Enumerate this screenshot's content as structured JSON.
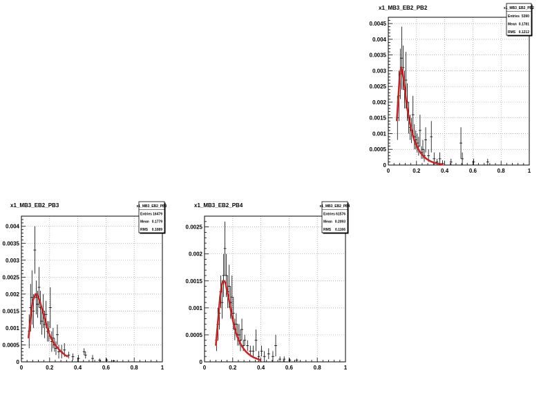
{
  "chart_data": [
    {
      "type": "histogram",
      "title": "x1_MB3_EB2_PB2",
      "xlim": [
        0,
        1
      ],
      "ylim": [
        0,
        0.0047
      ],
      "x_ticks": [
        {
          "v": 0,
          "label": "0"
        },
        {
          "v": 0.2,
          "label": "0.2"
        },
        {
          "v": 0.4,
          "label": "0.4"
        },
        {
          "v": 0.6,
          "label": "0.6"
        },
        {
          "v": 0.8,
          "label": "0.8"
        },
        {
          "v": 1,
          "label": "1"
        }
      ],
      "y_ticks": [
        {
          "v": 0,
          "label": "0"
        },
        {
          "v": 0.0005,
          "label": "0.0005"
        },
        {
          "v": 0.001,
          "label": "0.001"
        },
        {
          "v": 0.0015,
          "label": "0.0015"
        },
        {
          "v": 0.002,
          "label": "0.002"
        },
        {
          "v": 0.0025,
          "label": "0.0025"
        },
        {
          "v": 0.003,
          "label": "0.003"
        },
        {
          "v": 0.0035,
          "label": "0.0035"
        },
        {
          "v": 0.004,
          "label": "0.004"
        },
        {
          "v": 0.0045,
          "label": "0.0045"
        }
      ],
      "grid": true,
      "stats": {
        "name": "x1_MB3_EB2_PB2",
        "entries_label": "Entries",
        "entries": "5390",
        "mean_label": "Mean",
        "mean": "0.1781",
        "rms_label": "RMS",
        "rms": "0.1212"
      },
      "fit_color": "#cc2222",
      "fit": {
        "x": [
          0.06,
          0.07,
          0.08,
          0.09,
          0.1,
          0.11,
          0.12,
          0.13,
          0.15,
          0.17,
          0.19,
          0.21,
          0.23,
          0.25,
          0.27,
          0.29,
          0.31,
          0.33,
          0.35,
          0.37,
          0.39
        ],
        "y": [
          0.0014,
          0.0021,
          0.0028,
          0.0031,
          0.003,
          0.0027,
          0.0023,
          0.0019,
          0.0014,
          0.001,
          0.0007,
          0.00052,
          0.00038,
          0.00028,
          0.0002,
          0.00014,
          0.0001,
          7e-05,
          5e-05,
          3e-05,
          2e-05
        ]
      },
      "points": [
        {
          "x": 0.065,
          "y": 0.0015,
          "err": 0.0007
        },
        {
          "x": 0.075,
          "y": 0.0022,
          "err": 0.0008
        },
        {
          "x": 0.085,
          "y": 0.0029,
          "err": 0.0008
        },
        {
          "x": 0.095,
          "y": 0.0034,
          "err": 0.001
        },
        {
          "x": 0.105,
          "y": 0.0031,
          "err": 0.0007
        },
        {
          "x": 0.115,
          "y": 0.0024,
          "err": 0.0006
        },
        {
          "x": 0.125,
          "y": 0.0027,
          "err": 0.0009
        },
        {
          "x": 0.135,
          "y": 0.002,
          "err": 0.0006
        },
        {
          "x": 0.145,
          "y": 0.0015,
          "err": 0.0005
        },
        {
          "x": 0.155,
          "y": 0.0012,
          "err": 0.0004
        },
        {
          "x": 0.165,
          "y": 0.0011,
          "err": 0.0004
        },
        {
          "x": 0.175,
          "y": 0.0016,
          "err": 0.0006
        },
        {
          "x": 0.185,
          "y": 0.0009,
          "err": 0.0004
        },
        {
          "x": 0.195,
          "y": 0.0008,
          "err": 0.0003
        },
        {
          "x": 0.205,
          "y": 0.0007,
          "err": 0.0003
        },
        {
          "x": 0.215,
          "y": 0.0006,
          "err": 0.0003
        },
        {
          "x": 0.225,
          "y": 0.0011,
          "err": 0.0005
        },
        {
          "x": 0.235,
          "y": 0.0004,
          "err": 0.0002
        },
        {
          "x": 0.245,
          "y": 0.0005,
          "err": 0.0003
        },
        {
          "x": 0.255,
          "y": 0.0003,
          "err": 0.0002
        },
        {
          "x": 0.265,
          "y": 0.0008,
          "err": 0.0004
        },
        {
          "x": 0.285,
          "y": 0.0003,
          "err": 0.0002
        },
        {
          "x": 0.305,
          "y": 0.0009,
          "err": 0.0005
        },
        {
          "x": 0.325,
          "y": 0.0002,
          "err": 0.0002
        },
        {
          "x": 0.345,
          "y": 0.0001,
          "err": 0.0001
        },
        {
          "x": 0.365,
          "y": 0.0002,
          "err": 0.0002
        },
        {
          "x": 0.385,
          "y": 5e-05,
          "err": 0.0001
        },
        {
          "x": 0.445,
          "y": 0.0001,
          "err": 0.0001
        },
        {
          "x": 0.515,
          "y": 0.0007,
          "err": 0.0005
        },
        {
          "x": 0.525,
          "y": 0.0002,
          "err": 0.0002
        },
        {
          "x": 0.605,
          "y": 0.0001,
          "err": 0.0001
        },
        {
          "x": 0.705,
          "y": 0.0001,
          "err": 0.0001
        }
      ]
    },
    {
      "type": "histogram",
      "title": "x1_MB3_EB2_PB3",
      "xlim": [
        0,
        1
      ],
      "ylim": [
        0,
        0.0043
      ],
      "x_ticks": [
        {
          "v": 0,
          "label": "0"
        },
        {
          "v": 0.2,
          "label": "0.2"
        },
        {
          "v": 0.4,
          "label": "0.4"
        },
        {
          "v": 0.6,
          "label": "0.6"
        },
        {
          "v": 0.8,
          "label": "0.8"
        },
        {
          "v": 1,
          "label": "1"
        }
      ],
      "y_ticks": [
        {
          "v": 0,
          "label": "0"
        },
        {
          "v": 0.0005,
          "label": "0.0005"
        },
        {
          "v": 0.001,
          "label": "0.001"
        },
        {
          "v": 0.0015,
          "label": "0.0015"
        },
        {
          "v": 0.002,
          "label": "0.002"
        },
        {
          "v": 0.0025,
          "label": "0.0025"
        },
        {
          "v": 0.003,
          "label": "0.003"
        },
        {
          "v": 0.0035,
          "label": "0.0035"
        },
        {
          "v": 0.004,
          "label": "0.004"
        }
      ],
      "grid": true,
      "stats": {
        "name": "x1_MB3_EB2_PB3",
        "entries_label": "Entries",
        "entries": "16479",
        "mean_label": "Mean",
        "mean": "0.1779",
        "rms_label": "RMS",
        "rms": "0.1089"
      },
      "fit_color": "#cc2222",
      "fit": {
        "x": [
          0.05,
          0.06,
          0.07,
          0.08,
          0.09,
          0.1,
          0.11,
          0.12,
          0.13,
          0.15,
          0.17,
          0.19,
          0.21,
          0.23,
          0.25,
          0.27,
          0.29,
          0.31,
          0.33
        ],
        "y": [
          0.0007,
          0.0011,
          0.0015,
          0.0018,
          0.0019,
          0.002,
          0.002,
          0.0019,
          0.0018,
          0.0015,
          0.0012,
          0.0009,
          0.0007,
          0.00055,
          0.00045,
          0.00035,
          0.00027,
          0.0002,
          0.00015
        ]
      },
      "points": [
        {
          "x": 0.055,
          "y": 0.0009,
          "err": 0.0005
        },
        {
          "x": 0.065,
          "y": 0.0016,
          "err": 0.0007
        },
        {
          "x": 0.075,
          "y": 0.0019,
          "err": 0.0008
        },
        {
          "x": 0.085,
          "y": 0.0015,
          "err": 0.0005
        },
        {
          "x": 0.095,
          "y": 0.0033,
          "err": 0.0007
        },
        {
          "x": 0.105,
          "y": 0.0019,
          "err": 0.0005
        },
        {
          "x": 0.115,
          "y": 0.0017,
          "err": 0.0004
        },
        {
          "x": 0.125,
          "y": 0.0022,
          "err": 0.0006
        },
        {
          "x": 0.135,
          "y": 0.0016,
          "err": 0.0005
        },
        {
          "x": 0.145,
          "y": 0.0012,
          "err": 0.0004
        },
        {
          "x": 0.155,
          "y": 0.0015,
          "err": 0.0005
        },
        {
          "x": 0.165,
          "y": 0.0011,
          "err": 0.0004
        },
        {
          "x": 0.175,
          "y": 0.0014,
          "err": 0.0004
        },
        {
          "x": 0.185,
          "y": 0.0009,
          "err": 0.0003
        },
        {
          "x": 0.195,
          "y": 0.0009,
          "err": 0.0003
        },
        {
          "x": 0.205,
          "y": 0.0016,
          "err": 0.0006
        },
        {
          "x": 0.215,
          "y": 0.0006,
          "err": 0.0003
        },
        {
          "x": 0.225,
          "y": 0.0007,
          "err": 0.0003
        },
        {
          "x": 0.235,
          "y": 0.0005,
          "err": 0.0002
        },
        {
          "x": 0.245,
          "y": 0.0004,
          "err": 0.0002
        },
        {
          "x": 0.255,
          "y": 0.0008,
          "err": 0.0003
        },
        {
          "x": 0.265,
          "y": 0.0003,
          "err": 0.0002
        },
        {
          "x": 0.285,
          "y": 0.0003,
          "err": 0.0002
        },
        {
          "x": 0.305,
          "y": 0.00035,
          "err": 0.0002
        },
        {
          "x": 0.335,
          "y": 0.0002,
          "err": 0.0001
        },
        {
          "x": 0.365,
          "y": 0.00015,
          "err": 0.0001
        },
        {
          "x": 0.405,
          "y": 0.0001,
          "err": 0.0001
        },
        {
          "x": 0.445,
          "y": 0.0003,
          "err": 0.0001
        },
        {
          "x": 0.455,
          "y": 0.0002,
          "err": 0.0001
        },
        {
          "x": 0.505,
          "y": 0.0001,
          "err": 0.0001
        },
        {
          "x": 0.555,
          "y": 5e-05,
          "err": 5e-05
        },
        {
          "x": 0.605,
          "y": 5e-05,
          "err": 5e-05
        },
        {
          "x": 0.655,
          "y": 3e-05,
          "err": 3e-05
        }
      ]
    },
    {
      "type": "histogram",
      "title": "x1_MB3_EB2_PB4",
      "xlim": [
        0,
        1
      ],
      "ylim": [
        0,
        0.0027
      ],
      "x_ticks": [
        {
          "v": 0,
          "label": "0"
        },
        {
          "v": 0.2,
          "label": "0.2"
        },
        {
          "v": 0.4,
          "label": "0.4"
        },
        {
          "v": 0.6,
          "label": "0.6"
        },
        {
          "v": 0.8,
          "label": "0.8"
        },
        {
          "v": 1,
          "label": "1"
        }
      ],
      "y_ticks": [
        {
          "v": 0,
          "label": "0"
        },
        {
          "v": 0.0005,
          "label": "0.0005"
        },
        {
          "v": 0.001,
          "label": "0.001"
        },
        {
          "v": 0.0015,
          "label": "0.0015"
        },
        {
          "v": 0.002,
          "label": "0.002"
        },
        {
          "v": 0.0025,
          "label": "0.0025"
        }
      ],
      "grid": true,
      "stats": {
        "name": "x1_MB3_EB2_PB4",
        "entries_label": "Entries",
        "entries": "61576",
        "mean_label": "Mean",
        "mean": "0.2093",
        "rms_label": "RMS",
        "rms": "0.1166"
      },
      "fit_color": "#cc2222",
      "fit": {
        "x": [
          0.08,
          0.09,
          0.1,
          0.11,
          0.12,
          0.13,
          0.14,
          0.15,
          0.16,
          0.17,
          0.19,
          0.21,
          0.23,
          0.25,
          0.27,
          0.29,
          0.31,
          0.33,
          0.35,
          0.37,
          0.39,
          0.4
        ],
        "y": [
          0.0003,
          0.0006,
          0.0009,
          0.0012,
          0.0014,
          0.0015,
          0.0015,
          0.00145,
          0.0013,
          0.0012,
          0.0009,
          0.00066,
          0.00048,
          0.00036,
          0.00027,
          0.0002,
          0.00015,
          0.00011,
          8e-05,
          6e-05,
          4e-05,
          3e-05
        ]
      },
      "points": [
        {
          "x": 0.085,
          "y": 0.0004,
          "err": 0.0002
        },
        {
          "x": 0.095,
          "y": 0.0007,
          "err": 0.0003
        },
        {
          "x": 0.105,
          "y": 0.0009,
          "err": 0.0003
        },
        {
          "x": 0.115,
          "y": 0.0013,
          "err": 0.0003
        },
        {
          "x": 0.125,
          "y": 0.0011,
          "err": 0.0003
        },
        {
          "x": 0.135,
          "y": 0.0016,
          "err": 0.0004
        },
        {
          "x": 0.145,
          "y": 0.0021,
          "err": 0.0005
        },
        {
          "x": 0.155,
          "y": 0.0016,
          "err": 0.0004
        },
        {
          "x": 0.165,
          "y": 0.0013,
          "err": 0.0003
        },
        {
          "x": 0.175,
          "y": 0.0014,
          "err": 0.0004
        },
        {
          "x": 0.185,
          "y": 0.0011,
          "err": 0.0003
        },
        {
          "x": 0.195,
          "y": 0.0012,
          "err": 0.0004
        },
        {
          "x": 0.205,
          "y": 0.0009,
          "err": 0.0003
        },
        {
          "x": 0.215,
          "y": 0.0006,
          "err": 0.0002
        },
        {
          "x": 0.225,
          "y": 0.0007,
          "err": 0.0002
        },
        {
          "x": 0.235,
          "y": 0.0005,
          "err": 0.0002
        },
        {
          "x": 0.245,
          "y": 0.0005,
          "err": 0.0002
        },
        {
          "x": 0.255,
          "y": 0.0004,
          "err": 0.0002
        },
        {
          "x": 0.265,
          "y": 0.0006,
          "err": 0.0002
        },
        {
          "x": 0.275,
          "y": 0.0003,
          "err": 0.0001
        },
        {
          "x": 0.285,
          "y": 0.0004,
          "err": 0.0001
        },
        {
          "x": 0.305,
          "y": 0.0003,
          "err": 0.0001
        },
        {
          "x": 0.325,
          "y": 0.0002,
          "err": 0.0001
        },
        {
          "x": 0.345,
          "y": 0.0002,
          "err": 0.0001
        },
        {
          "x": 0.365,
          "y": 0.0004,
          "err": 0.0002
        },
        {
          "x": 0.385,
          "y": 0.0001,
          "err": 0.0001
        },
        {
          "x": 0.405,
          "y": 0.0002,
          "err": 0.0001
        },
        {
          "x": 0.425,
          "y": 0.0001,
          "err": 0.0001
        },
        {
          "x": 0.455,
          "y": 0.00015,
          "err": 0.0001
        },
        {
          "x": 0.485,
          "y": 0.0001,
          "err": 0.0001
        },
        {
          "x": 0.505,
          "y": 0.0003,
          "err": 0.0002
        },
        {
          "x": 0.535,
          "y": 5e-05,
          "err": 5e-05
        },
        {
          "x": 0.565,
          "y": 5e-05,
          "err": 5e-05
        },
        {
          "x": 0.605,
          "y": 3e-05,
          "err": 3e-05
        },
        {
          "x": 0.655,
          "y": 3e-05,
          "err": 3e-05
        }
      ]
    }
  ]
}
